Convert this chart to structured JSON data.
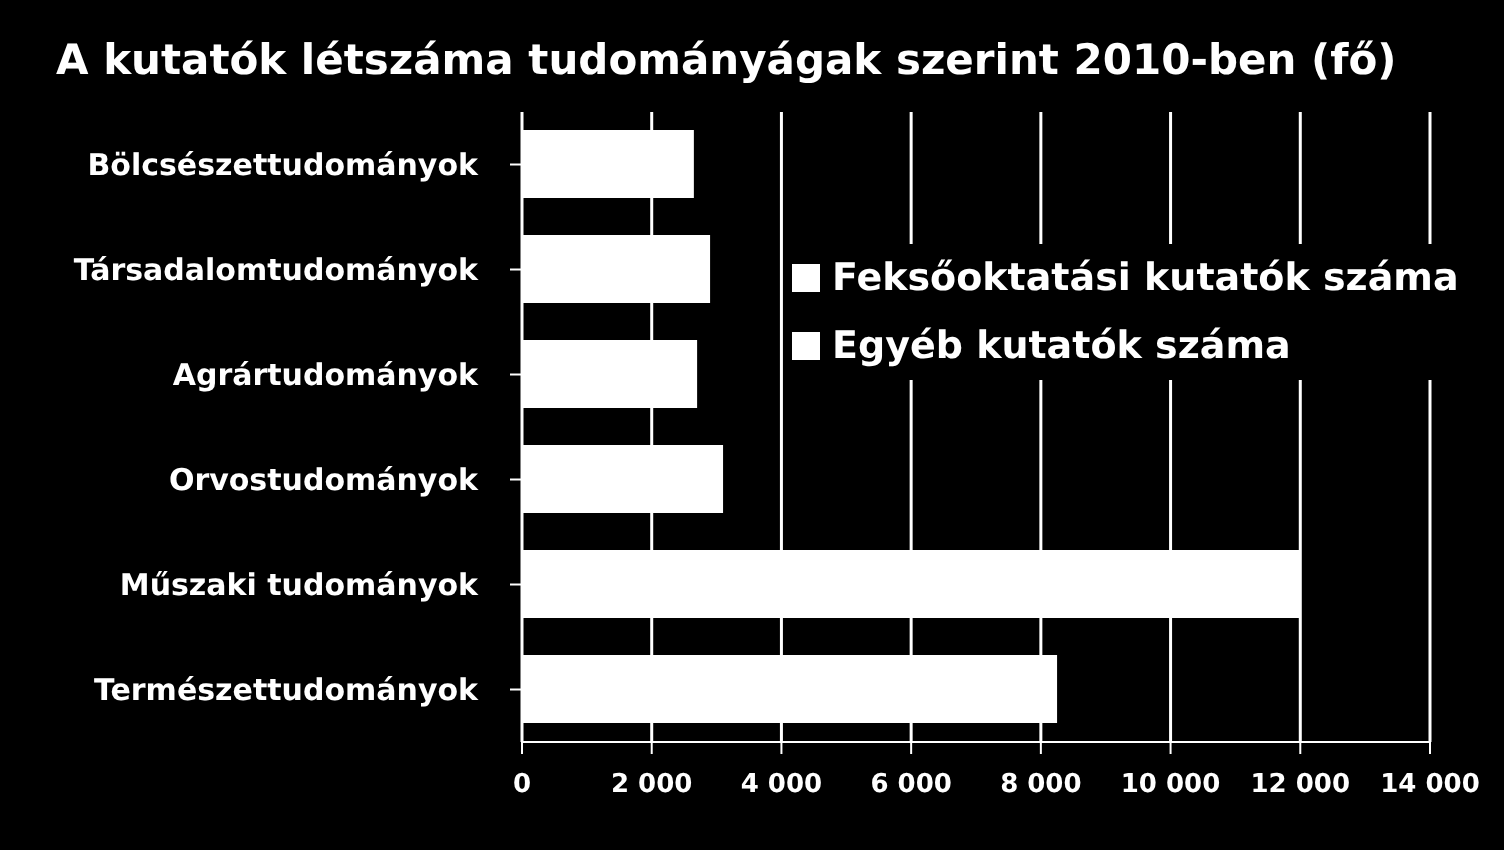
{
  "chart_data": {
    "type": "bar",
    "orientation": "horizontal",
    "stacked": true,
    "title": "A kutatók létszáma tudományágak szerint 2010-ben (fő)",
    "categories": [
      "Bölcsészettudományok",
      "Társadalomtudományok",
      "Agrártudományok",
      "Orvostudományok",
      "Műszaki tudományok",
      "Természettudományok"
    ],
    "series": [
      {
        "name": "Feksőoktatási kutatók száma",
        "color": "#ffffff",
        "values": [
          2650,
          2900,
          2700,
          3100,
          12000,
          8250
        ]
      },
      {
        "name": "Egyéb kutatók száma",
        "color": "#ffffff",
        "values": [
          null,
          null,
          null,
          null,
          null,
          null
        ]
      }
    ],
    "xlim": [
      0,
      14000
    ],
    "xticks": [
      {
        "value": 0,
        "label": "0"
      },
      {
        "value": 2000,
        "label": "2 000"
      },
      {
        "value": 4000,
        "label": "4 000"
      },
      {
        "value": 6000,
        "label": "6 000"
      },
      {
        "value": 8000,
        "label": "8 000"
      },
      {
        "value": 10000,
        "label": "10 000"
      },
      {
        "value": 12000,
        "label": "12 000"
      },
      {
        "value": 14000,
        "label": "14 000"
      }
    ],
    "grid": "x",
    "legend": "top right"
  }
}
